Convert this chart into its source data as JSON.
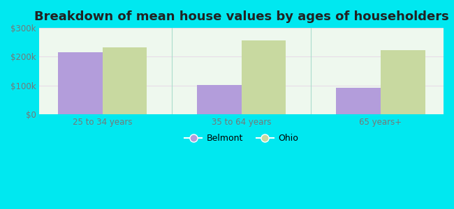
{
  "title": "Breakdown of mean house values by ages of householders",
  "categories": [
    "25 to 34 years",
    "35 to 64 years",
    "65 years+"
  ],
  "belmont_values": [
    215000,
    101000,
    93000
  ],
  "ohio_values": [
    232000,
    257000,
    222000
  ],
  "ylim": [
    0,
    300000
  ],
  "yticks": [
    0,
    100000,
    200000,
    300000
  ],
  "ytick_labels": [
    "$0",
    "$100k",
    "$200k",
    "$300k"
  ],
  "bar_color_belmont": "#b39ddb",
  "bar_color_ohio": "#c8d9a0",
  "legend_belmont": "Belmont",
  "legend_ohio": "Ohio",
  "bg_outer": "#00e8f0",
  "title_fontsize": 13,
  "tick_fontsize": 8.5,
  "bar_width": 0.32,
  "separator_color": "#aaddcc",
  "gridline_color": "#ddeecc"
}
